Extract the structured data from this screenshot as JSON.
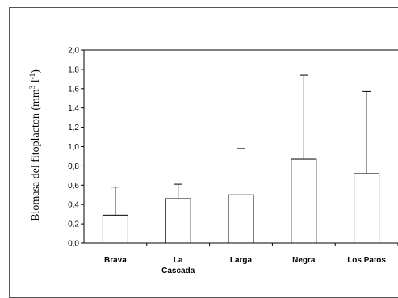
{
  "chart_data": {
    "type": "bar",
    "ylabel_main": "Biomasa del fitoplacton (mm",
    "ylabel_unit_exp": "3",
    "ylabel_mid": " l",
    "ylabel_unit_exp2": "-1",
    "ylabel_end": ")",
    "categories": [
      {
        "lines": [
          "Brava"
        ]
      },
      {
        "lines": [
          "La",
          "Cascada"
        ]
      },
      {
        "lines": [
          "Larga"
        ]
      },
      {
        "lines": [
          "Negra"
        ]
      },
      {
        "lines": [
          "Los Patos"
        ]
      }
    ],
    "values": [
      0.29,
      0.46,
      0.5,
      0.87,
      0.72
    ],
    "error_upper": [
      0.58,
      0.61,
      0.98,
      1.74,
      1.57
    ],
    "ylim": [
      0,
      2.0
    ],
    "yticks": [
      "0,0",
      "0,2",
      "0,4",
      "0,6",
      "0,8",
      "1,0",
      "1,2",
      "1,4",
      "1,6",
      "1,8",
      "2,0"
    ],
    "bar_fill": "#ffffff",
    "bar_stroke": "#000000"
  }
}
